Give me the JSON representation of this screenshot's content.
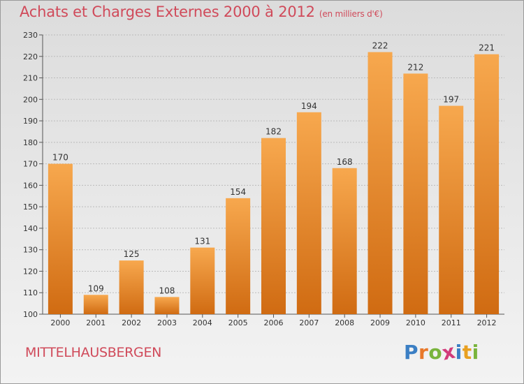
{
  "header": {
    "title": "Achats et Charges Externes 2000 à 2012",
    "unit": "(en milliers d'€)"
  },
  "footer": {
    "location": "MITTELHAUSBERGEN"
  },
  "logo": {
    "text": "Proxiti",
    "letters": [
      "P",
      "r",
      "o",
      "x",
      "i",
      "t",
      "i"
    ],
    "colors": [
      "#3b7fc4",
      "#e8782a",
      "#79b43c",
      "#d23b7a",
      "#3b7fc4",
      "#e8a020",
      "#79b43c"
    ]
  },
  "colors": {
    "bar_light": "#f7a84e",
    "bar_dark": "#d06b12",
    "title": "#d04a5a",
    "grid": "#bbbbbb"
  },
  "chart_data": {
    "type": "bar",
    "title": "Achats et Charges Externes 2000 à 2012",
    "subtitle": "(en milliers d'€)",
    "categories": [
      "2000",
      "2001",
      "2002",
      "2003",
      "2004",
      "2005",
      "2006",
      "2007",
      "2008",
      "2009",
      "2010",
      "2011",
      "2012"
    ],
    "values": [
      170,
      109,
      125,
      108,
      131,
      154,
      182,
      194,
      168,
      222,
      212,
      197,
      221
    ],
    "ylim": [
      100,
      230
    ],
    "yticks": [
      100,
      110,
      120,
      130,
      140,
      150,
      160,
      170,
      180,
      190,
      200,
      210,
      220,
      230
    ],
    "xlabel": "",
    "ylabel": "",
    "grid": true,
    "data_labels": true
  }
}
